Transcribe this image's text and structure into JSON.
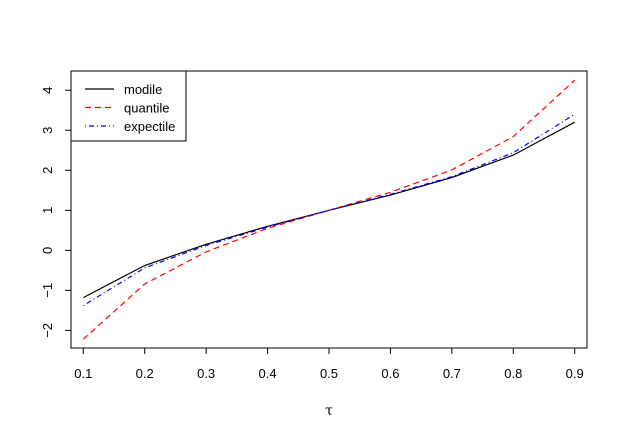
{
  "chart_data": {
    "type": "line",
    "xlabel": "τ",
    "ylabel": "",
    "x": [
      0.1,
      0.2,
      0.3,
      0.4,
      0.5,
      0.6,
      0.7,
      0.8,
      0.9
    ],
    "xticks": [
      "0.1",
      "0.2",
      "0.3",
      "0.4",
      "0.5",
      "0.6",
      "0.7",
      "0.8",
      "0.9"
    ],
    "yticks": [
      "−2",
      "−1",
      "0",
      "1",
      "2",
      "3",
      "4"
    ],
    "ytick_values": [
      -2,
      -1,
      0,
      1,
      2,
      3,
      4
    ],
    "xlim": [
      0.08,
      0.92
    ],
    "ylim": [
      -2.44,
      4.48
    ],
    "grid": false,
    "legend_position": "top-left",
    "series": [
      {
        "name": "modile",
        "color": "#000000",
        "dash": "solid",
        "values": [
          -1.18,
          -0.38,
          0.15,
          0.6,
          1.0,
          1.38,
          1.82,
          2.38,
          3.2
        ]
      },
      {
        "name": "quantile",
        "color": "#ff0000",
        "dash": "dashed",
        "values": [
          -2.22,
          -0.84,
          -0.04,
          0.55,
          1.0,
          1.45,
          2.01,
          2.84,
          4.25
        ]
      },
      {
        "name": "expectile",
        "color": "#0000ff",
        "dash": "dotdash",
        "values": [
          -1.38,
          -0.44,
          0.12,
          0.58,
          1.0,
          1.4,
          1.84,
          2.44,
          3.4
        ]
      }
    ]
  }
}
